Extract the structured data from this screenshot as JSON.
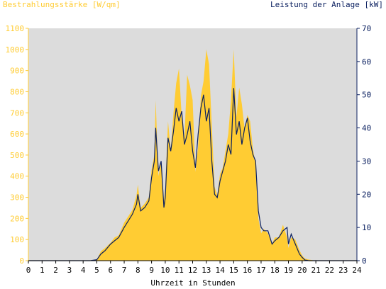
{
  "chart_data": {
    "type": "area",
    "ylabel_left": "Bestrahlungsstärke [W/qm]",
    "ylabel_right": "Leistung der Anlage [kW]",
    "xlabel": "Uhrzeit in Stunden",
    "x_ticks": [
      "0",
      "1",
      "2",
      "3",
      "4",
      "5",
      "6",
      "7",
      "8",
      "9",
      "10",
      "11",
      "12",
      "13",
      "14",
      "15",
      "16",
      "17",
      "18",
      "19",
      "20",
      "21",
      "22",
      "23",
      "24"
    ],
    "y_left_ticks": [
      "0",
      "100",
      "200",
      "300",
      "400",
      "500",
      "600",
      "700",
      "800",
      "900",
      "1000",
      "1100"
    ],
    "y_right_ticks": [
      "0",
      "10",
      "20",
      "30",
      "40",
      "50",
      "60",
      "70"
    ],
    "xlim": [
      0,
      24
    ],
    "ylim_left": [
      0,
      1100
    ],
    "ylim_right": [
      0,
      70
    ],
    "grid": false,
    "colors": {
      "irradiance": "#ffcc33",
      "power": "#0b2060",
      "plot_bg": "#dcdcdc"
    },
    "series": [
      {
        "name": "Bestrahlungsstärke [W/qm]",
        "axis": "left",
        "x": [
          0,
          4.5,
          5,
          5.3,
          5.6,
          6,
          6.3,
          6.6,
          7,
          7.3,
          7.6,
          7.9,
          8.0,
          8.2,
          8.5,
          8.8,
          9.0,
          9.2,
          9.3,
          9.5,
          9.7,
          9.9,
          10.0,
          10.2,
          10.4,
          10.6,
          10.8,
          11.0,
          11.2,
          11.4,
          11.6,
          11.8,
          12.0,
          12.2,
          12.4,
          12.6,
          12.8,
          13.0,
          13.2,
          13.4,
          13.6,
          13.8,
          14.0,
          14.2,
          14.4,
          14.6,
          14.8,
          15.0,
          15.2,
          15.4,
          15.6,
          15.8,
          16.0,
          16.2,
          16.4,
          16.6,
          16.8,
          17.0,
          17.2,
          17.5,
          17.8,
          18.0,
          18.3,
          18.6,
          18.9,
          19.0,
          19.2,
          19.5,
          19.8,
          20.0,
          20.2,
          20.5,
          21,
          24
        ],
        "y": [
          0,
          0,
          5,
          45,
          60,
          85,
          110,
          120,
          180,
          210,
          240,
          310,
          360,
          250,
          270,
          300,
          430,
          500,
          760,
          400,
          470,
          280,
          350,
          660,
          520,
          700,
          840,
          910,
          680,
          580,
          880,
          830,
          760,
          420,
          540,
          780,
          850,
          1000,
          930,
          640,
          350,
          310,
          410,
          440,
          520,
          600,
          760,
          1000,
          680,
          820,
          740,
          620,
          690,
          660,
          530,
          460,
          200,
          130,
          150,
          130,
          80,
          110,
          110,
          170,
          110,
          60,
          110,
          100,
          50,
          25,
          10,
          5,
          0,
          0
        ]
      },
      {
        "name": "Leistung der Anlage [kW]",
        "axis": "right",
        "x": [
          0,
          4.5,
          5,
          5.3,
          5.6,
          6,
          6.3,
          6.6,
          7,
          7.3,
          7.6,
          7.9,
          8.0,
          8.2,
          8.5,
          8.8,
          9.0,
          9.2,
          9.3,
          9.5,
          9.7,
          9.9,
          10.0,
          10.2,
          10.4,
          10.6,
          10.8,
          11.0,
          11.2,
          11.4,
          11.6,
          11.8,
          12.0,
          12.2,
          12.4,
          12.6,
          12.8,
          13.0,
          13.2,
          13.4,
          13.6,
          13.8,
          14.0,
          14.2,
          14.4,
          14.6,
          14.8,
          15.0,
          15.2,
          15.4,
          15.6,
          15.8,
          16.0,
          16.2,
          16.4,
          16.6,
          16.8,
          17.0,
          17.2,
          17.5,
          17.8,
          18.0,
          18.3,
          18.6,
          18.9,
          19.0,
          19.2,
          19.5,
          19.8,
          20.0,
          20.2,
          20.5,
          21,
          24
        ],
        "y": [
          0,
          0,
          0.3,
          2,
          3,
          5,
          6,
          7,
          10,
          12,
          14,
          17,
          20,
          15,
          16,
          18,
          25,
          30,
          40,
          27,
          30,
          16,
          19,
          37,
          33,
          39,
          46,
          42,
          45,
          35,
          38,
          42,
          33,
          28,
          38,
          46,
          50,
          42,
          46,
          30,
          20,
          19,
          24,
          27,
          30,
          35,
          32,
          52,
          38,
          42,
          35,
          40,
          43,
          36,
          32,
          30,
          15,
          10,
          9,
          9,
          5,
          6,
          7,
          9,
          10,
          5,
          8,
          5,
          2,
          1,
          0.2,
          0,
          0,
          0
        ]
      }
    ]
  }
}
